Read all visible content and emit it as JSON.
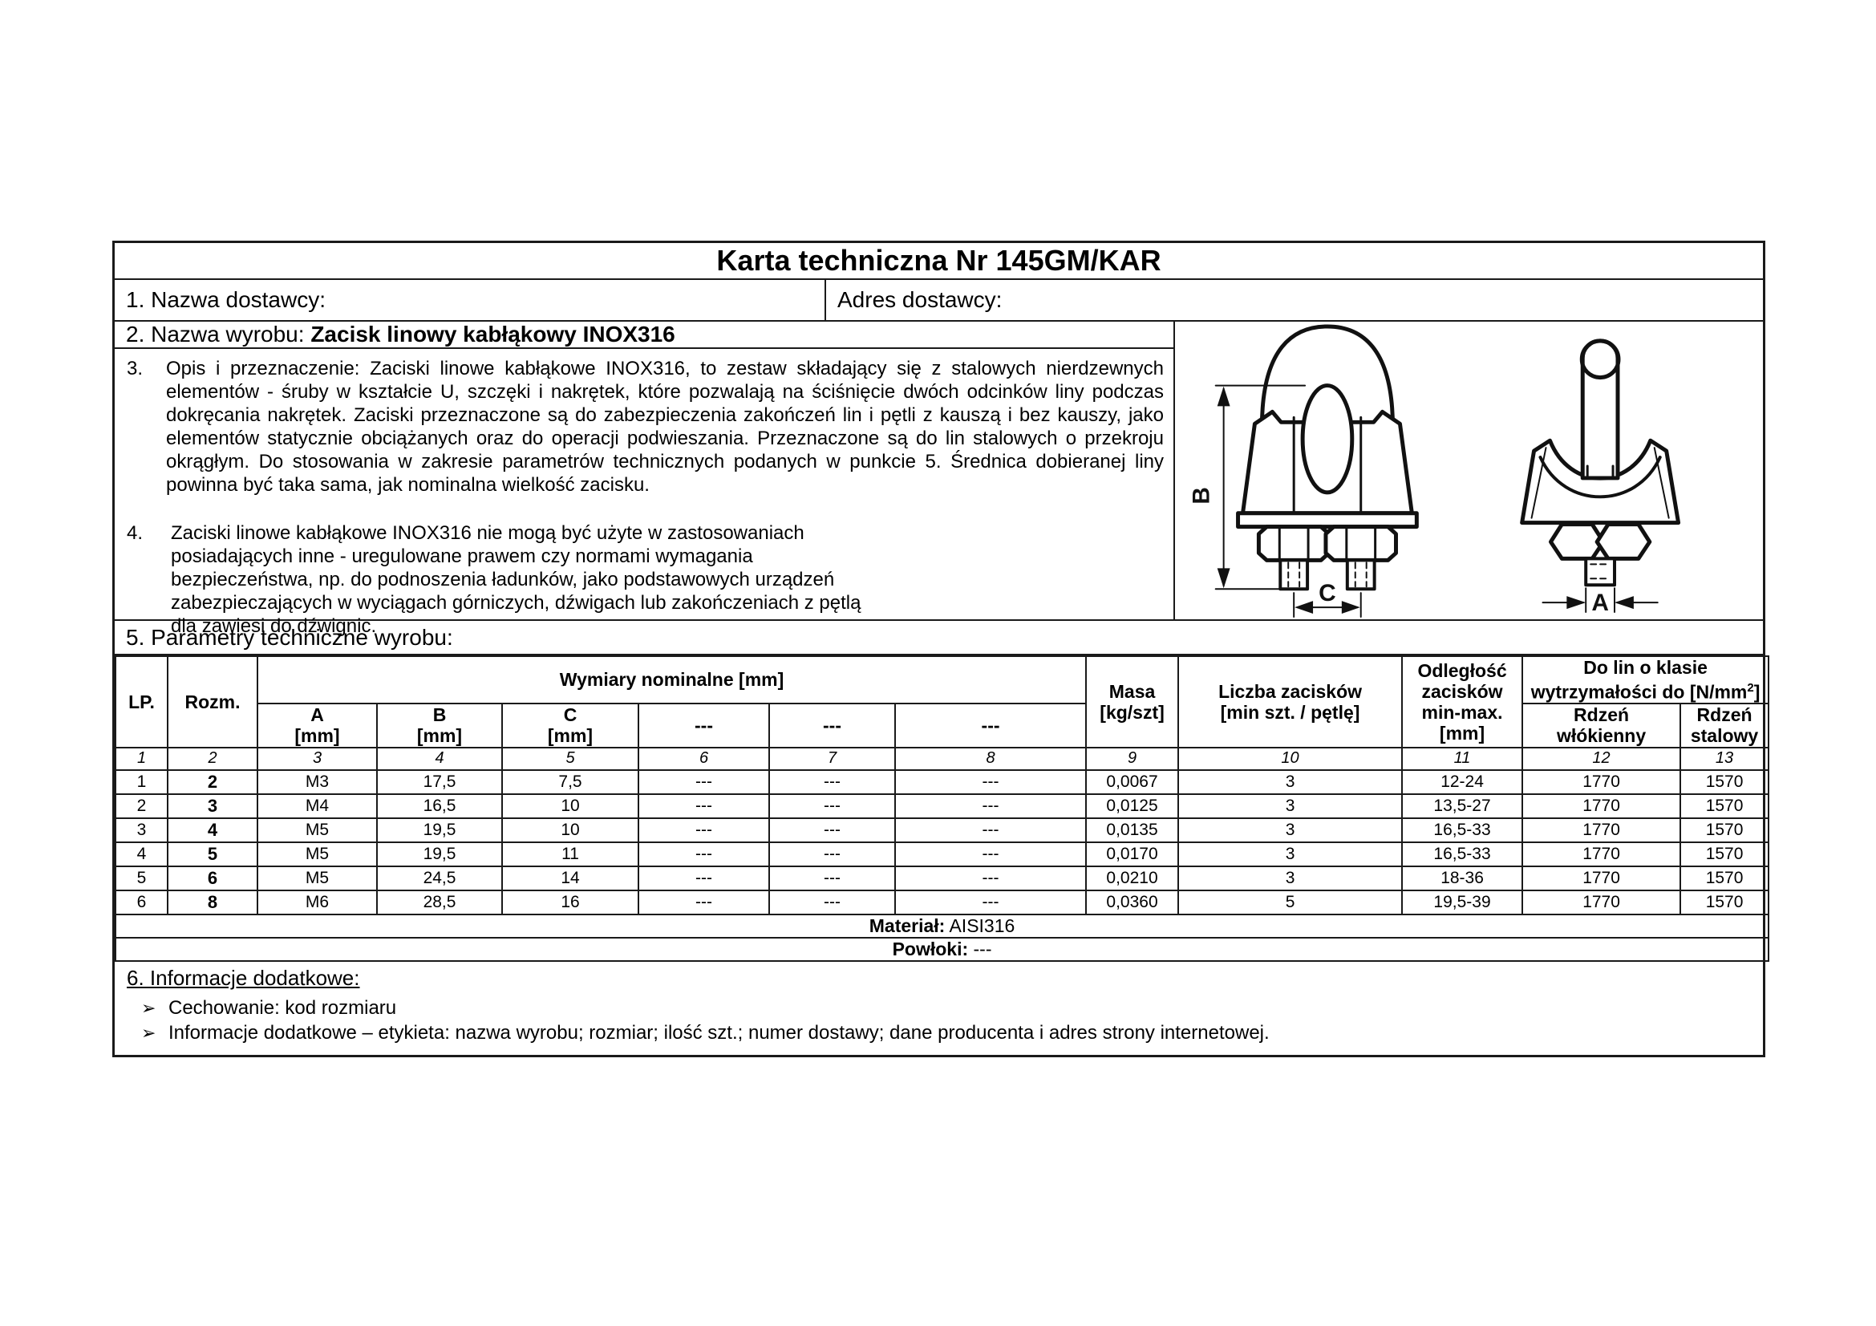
{
  "document": {
    "title": "Karta techniczna Nr 145GM/KAR",
    "supplier": {
      "name_label": "1. Nazwa dostawcy:",
      "address_label": "Adres dostawcy:"
    },
    "product": {
      "label": "2. Nazwa wyrobu: ",
      "name": "Zacisk linowy kabłąkowy INOX316"
    },
    "section3": {
      "number": "3.",
      "text": "Opis i przeznaczenie: Zaciski linowe kabłąkowe INOX316, to zestaw składający się z stalowych nierdzewnych elementów - śruby w kształcie U, szczęki i nakrętek, które pozwalają na ściśnięcie dwóch odcinków liny podczas dokręcania nakrętek. Zaciski przeznaczone są do zabezpieczenia zakończeń lin i pętli  z kauszą i bez kauszy, jako elementów statycznie obciążanych oraz do operacji podwieszania. Przeznaczone są do lin stalowych o przekroju okrągłym. Do stosowania w zakresie parametrów technicznych podanych w punkcie 5. Średnica dobieranej liny powinna być taka sama, jak nominalna wielkość zacisku."
    },
    "section4": {
      "number": "4.",
      "text": "Zaciski linowe kabłąkowe INOX316 nie mogą być użyte w zastosowaniach posiadających inne - uregulowane prawem czy normami wymagania bezpieczeństwa, np. do podnoszenia ładunków, jako podstawowych urządzeń zabezpieczających w wyciągach górniczych, dźwigach lub zakończeniach z pętlą dla zawiesi do dźwignic."
    },
    "section5_label": "5. Parametry techniczne wyrobu:",
    "drawing": {
      "dim_b": "B",
      "dim_c": "C",
      "dim_a": "A"
    },
    "table": {
      "group_headers": {
        "lp": "LP.",
        "rozm": "Rozm.",
        "wymiary": "Wymiary nominalne [mm]",
        "masa": "Masa\n[kg/szt]",
        "liczba": "Liczba zacisków\n[min szt. / pętlę]",
        "odleglosc": "Odległość\nzacisków\nmin-max.\n[mm]",
        "dolin_line1": "Do lin o klasie",
        "dolin_line2_pre": "wytrzymałości do [N/mm",
        "dolin_sup": "2",
        "dolin_line2_post": "]"
      },
      "sub_headers": [
        "A\n[mm]",
        "B\n[mm]",
        "C\n[mm]",
        "---",
        "---",
        "---",
        "Rdzeń\nwłókienny",
        "Rdzeń\nstalowy"
      ],
      "col_numbers": [
        "1",
        "2",
        "3",
        "4",
        "5",
        "6",
        "7",
        "8",
        "9",
        "10",
        "11",
        "12",
        "13"
      ],
      "rows": [
        [
          "1",
          "2",
          "M3",
          "17,5",
          "7,5",
          "---",
          "---",
          "---",
          "0,0067",
          "3",
          "12-24",
          "1770",
          "1570"
        ],
        [
          "2",
          "3",
          "M4",
          "16,5",
          "10",
          "---",
          "---",
          "---",
          "0,0125",
          "3",
          "13,5-27",
          "1770",
          "1570"
        ],
        [
          "3",
          "4",
          "M5",
          "19,5",
          "10",
          "---",
          "---",
          "---",
          "0,0135",
          "3",
          "16,5-33",
          "1770",
          "1570"
        ],
        [
          "4",
          "5",
          "M5",
          "19,5",
          "11",
          "---",
          "---",
          "---",
          "0,0170",
          "3",
          "16,5-33",
          "1770",
          "1570"
        ],
        [
          "5",
          "6",
          "M5",
          "24,5",
          "14",
          "---",
          "---",
          "---",
          "0,0210",
          "3",
          "18-36",
          "1770",
          "1570"
        ],
        [
          "6",
          "8",
          "M6",
          "28,5",
          "16",
          "---",
          "---",
          "---",
          "0,0360",
          "5",
          "19,5-39",
          "1770",
          "1570"
        ]
      ],
      "material_label": "Materiał:",
      "material_value": "AISI316",
      "coating_label": "Powłoki:",
      "coating_value": "---"
    },
    "section6": {
      "title": "6. Informacje dodatkowe:",
      "bullets": [
        {
          "marker": "➢",
          "text": "Cechowanie:  kod rozmiaru"
        },
        {
          "marker": "➢",
          "text": "Informacje dodatkowe – etykieta: nazwa wyrobu; rozmiar; ilość szt.; numer dostawy; dane producenta i adres strony internetowej."
        }
      ]
    }
  }
}
